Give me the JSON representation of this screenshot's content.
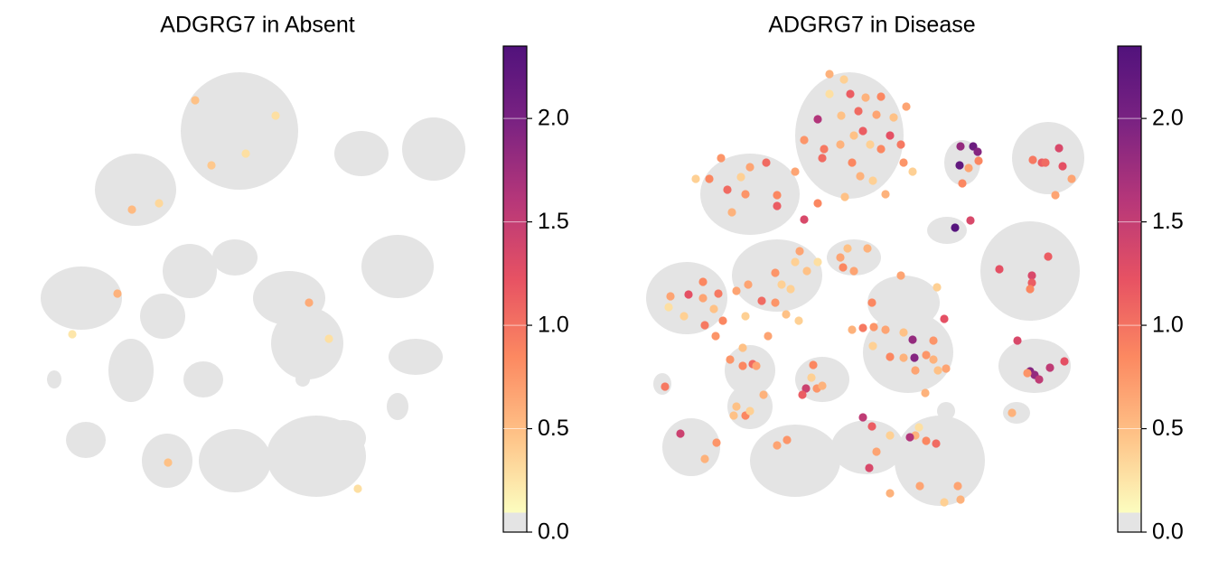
{
  "chart_data": [
    {
      "type": "scatter",
      "title": "ADGRG7 in Absent",
      "xlim": [
        0,
        510
      ],
      "ylim": [
        0,
        540
      ],
      "clim": [
        0,
        2.35
      ],
      "zero_color": "#e4e4e4",
      "colors": [
        "#fcfdbf",
        "#fec287",
        "#fc8961",
        "#e75263",
        "#b73779",
        "#7c2382",
        "#51127c"
      ],
      "colorbar_ticks": [
        {
          "value": 0,
          "label": "0.0"
        },
        {
          "value": 0.5,
          "label": "0.5"
        },
        {
          "value": 1,
          "label": "1.0"
        },
        {
          "value": 1.5,
          "label": "1.5"
        },
        {
          "value": 2,
          "label": "2.0"
        }
      ],
      "x": [
        186,
        275,
        204,
        242,
        116,
        146,
        100,
        312,
        50,
        334,
        156,
        366
      ],
      "y": [
        479,
        462,
        407,
        420,
        358,
        365,
        265,
        255,
        220,
        215,
        78,
        49
      ],
      "values": [
        0.4,
        0.2,
        0.35,
        0.2,
        0.45,
        0.25,
        0.5,
        0.55,
        0.15,
        0.2,
        0.4,
        0.2
      ]
    },
    {
      "type": "scatter",
      "title": "ADGRG7 in Disease",
      "xlim": [
        0,
        510
      ],
      "ylim": [
        0,
        540
      ],
      "clim": [
        0,
        2.35
      ],
      "zero_color": "#e4e4e4",
      "colors": [
        "#fcfdbf",
        "#fec287",
        "#fc8961",
        "#e75263",
        "#b73779",
        "#7c2382",
        "#51127c"
      ],
      "colorbar_ticks": [
        {
          "value": 0,
          "label": "0.0"
        },
        {
          "value": 0.5,
          "label": "0.5"
        },
        {
          "value": 1,
          "label": "1.0"
        },
        {
          "value": 1.5,
          "label": "1.5"
        },
        {
          "value": 2,
          "label": "2.0"
        }
      ],
      "x": [
        208,
        224,
        231,
        248,
        265,
        208,
        195,
        221,
        240,
        260,
        279,
        293,
        245,
        275,
        287,
        180,
        202,
        220,
        235,
        253,
        265,
        290,
        300,
        233,
        242,
        256,
        270,
        225,
        200,
        170,
        195,
        180,
        150,
        150,
        138,
        120,
        88,
        75,
        95,
        115,
        100,
        60,
        110,
        353,
        367,
        372,
        352,
        362,
        373,
        355,
        347,
        364,
        433,
        443,
        447,
        462,
        466,
        476,
        458,
        396,
        450,
        432,
        432,
        430,
        416,
        430,
        435,
        440,
        452,
        468,
        427,
        410,
        175,
        148,
        155,
        170,
        183,
        165,
        195,
        220,
        223,
        235,
        228,
        250,
        32,
        52,
        68,
        68,
        85,
        105,
        118,
        80,
        90,
        70,
        82,
        47,
        30,
        133,
        148,
        160,
        115,
        140,
        174,
        287,
        327,
        255,
        257,
        233,
        245,
        270,
        300,
        290,
        323,
        335,
        256,
        275,
        290,
        302,
        315,
        323,
        303,
        328,
        337,
        314,
        98,
        112,
        123,
        112,
        127,
        190,
        188,
        194,
        200,
        182,
        178,
        135,
        105,
        115,
        120,
        102,
        26,
        43,
        83,
        70,
        150,
        161,
        245,
        255,
        307,
        275,
        303,
        297,
        315,
        326,
        252,
        260,
        308,
        275,
        350,
        335,
        353
      ],
      "y": [
        508,
        502,
        486,
        482,
        483,
        486,
        458,
        462,
        467,
        463,
        460,
        472,
        445,
        440,
        430,
        435,
        425,
        430,
        440,
        430,
        425,
        410,
        400,
        410,
        395,
        390,
        375,
        372,
        415,
        400,
        365,
        347,
        374,
        362,
        410,
        405,
        415,
        392,
        380,
        375,
        355,
        392,
        394,
        428,
        428,
        422,
        407,
        404,
        412,
        387,
        338,
        346,
        413,
        410,
        410,
        426,
        406,
        392,
        374,
        292,
        306,
        285,
        277,
        270,
        213,
        179,
        175,
        170,
        183,
        190,
        177,
        133,
        312,
        288,
        275,
        300,
        290,
        270,
        300,
        305,
        294,
        290,
        315,
        315,
        262,
        264,
        260,
        278,
        265,
        268,
        275,
        248,
        235,
        230,
        218,
        240,
        250,
        257,
        255,
        242,
        240,
        218,
        235,
        285,
        272,
        255,
        228,
        225,
        227,
        225,
        214,
        222,
        213,
        237,
        207,
        195,
        194,
        194,
        197,
        192,
        180,
        180,
        182,
        155,
        192,
        185,
        187,
        205,
        185,
        186,
        172,
        160,
        163,
        160,
        153,
        153,
        140,
        130,
        135,
        130,
        162,
        110,
        100,
        82,
        97,
        103,
        128,
        118,
        117,
        108,
        108,
        106,
        102,
        99,
        72,
        90,
        52,
        44,
        52,
        34,
        37
      ],
      "values": [
        0.5,
        0.3,
        1.1,
        0.5,
        0.8,
        0.2,
        1.6,
        0.4,
        1.0,
        0.6,
        0.4,
        0.6,
        1.1,
        1.2,
        0.9,
        0.7,
        0.9,
        0.5,
        0.4,
        0.3,
        0.8,
        0.7,
        0.3,
        0.8,
        0.5,
        0.3,
        0.5,
        0.4,
        1.0,
        0.6,
        0.8,
        1.3,
        0.8,
        1.1,
        1.0,
        0.6,
        0.7,
        0.8,
        1.0,
        0.7,
        0.5,
        0.3,
        0.3,
        1.8,
        2.1,
        1.9,
        2.2,
        0.6,
        0.8,
        0.8,
        2.3,
        1.3,
        0.9,
        1.1,
        1.0,
        1.3,
        1.2,
        0.6,
        0.6,
        1.2,
        1.1,
        1.3,
        1.1,
        0.8,
        1.3,
        1.9,
        1.8,
        1.5,
        1.5,
        1.2,
        0.7,
        0.5,
        0.6,
        0.7,
        0.3,
        0.3,
        0.4,
        0.3,
        0.2,
        0.6,
        0.8,
        0.6,
        0.4,
        0.5,
        0.6,
        1.2,
        0.6,
        0.8,
        0.9,
        0.6,
        0.6,
        0.4,
        0.8,
        0.9,
        0.7,
        0.3,
        0.2,
        1.0,
        0.7,
        0.4,
        0.3,
        0.6,
        0.3,
        0.6,
        0.3,
        0.8,
        0.7,
        0.5,
        0.9,
        0.6,
        1.8,
        0.4,
        0.7,
        1.2,
        0.3,
        0.8,
        0.5,
        1.9,
        0.7,
        0.5,
        0.6,
        0.4,
        0.6,
        0.5,
        0.7,
        0.8,
        1.0,
        0.4,
        0.6,
        0.8,
        0.3,
        0.7,
        0.5,
        1.4,
        1.1,
        0.5,
        0.4,
        0.8,
        0.3,
        0.4,
        0.9,
        1.4,
        0.7,
        0.5,
        0.6,
        0.7,
        1.5,
        1.1,
        0.2,
        0.3,
        0.5,
        1.6,
        0.8,
        1.0,
        1.3,
        0.6,
        0.6,
        0.5,
        0.6,
        0.3,
        0.5
      ]
    }
  ]
}
